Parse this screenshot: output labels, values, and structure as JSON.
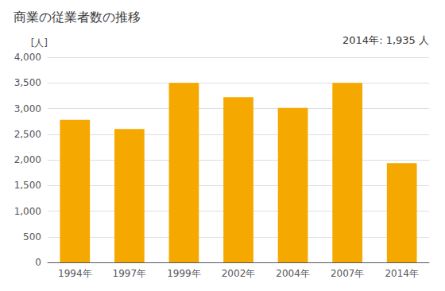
{
  "chart_data": {
    "type": "bar",
    "title": "商業の従業者数の推移",
    "ylabel": "[人]",
    "annotation": "2014年: 1,935 人",
    "categories": [
      "1994年",
      "1997年",
      "1999年",
      "2002年",
      "2004年",
      "2007年",
      "2014年"
    ],
    "values": [
      2780,
      2600,
      3500,
      3220,
      3010,
      3500,
      1935
    ],
    "color": "#F5A800",
    "ylim": [
      0,
      4000
    ],
    "yticks": [
      0,
      500,
      {
        "value": 1000,
        "label": "1,000"
      },
      {
        "value": 1500,
        "label": "1,500"
      },
      {
        "value": 2000,
        "label": "2,000"
      },
      {
        "value": 2500,
        "label": "2,500"
      },
      {
        "value": 3000,
        "label": "3,000"
      },
      {
        "value": 3500,
        "label": "3,500"
      },
      {
        "value": 4000,
        "label": "4,000"
      }
    ],
    "grid": true
  }
}
